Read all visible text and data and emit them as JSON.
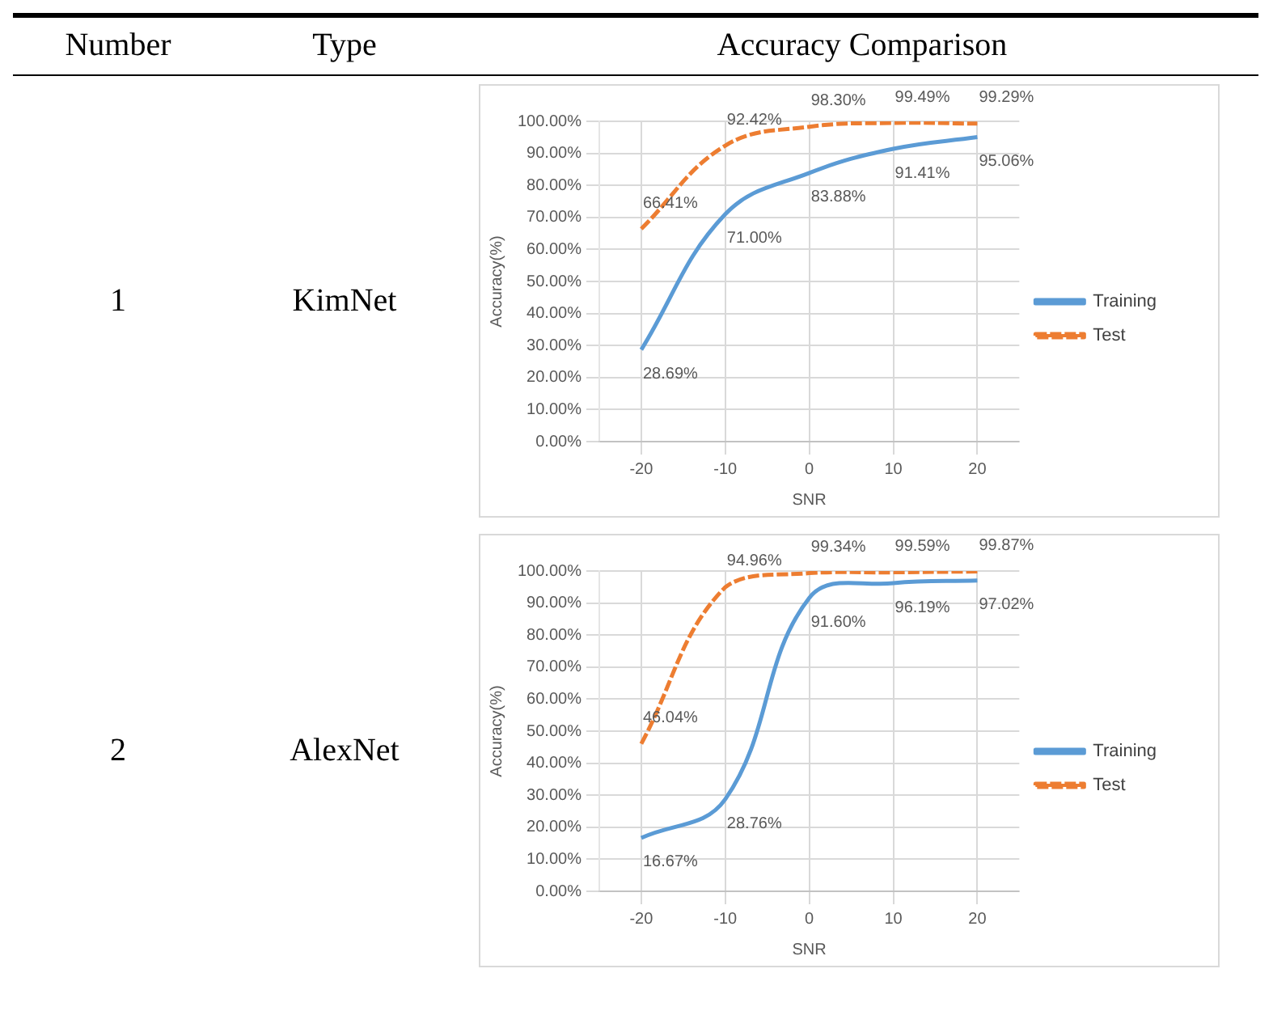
{
  "chart_data": [
    {
      "type": "other",
      "annotations": [
        "Number",
        "Type",
        "Accuracy Comparison"
      ]
    },
    {
      "type": "line",
      "annotations": [
        "1",
        "KimNet"
      ],
      "xlabel": "SNR",
      "ylabel": "Accuracy(%)",
      "x": [
        -20,
        -10,
        0,
        10,
        20
      ],
      "xlim": [
        -25,
        25
      ],
      "xticks": [
        -20,
        -10,
        0,
        10,
        20
      ],
      "ylim": [
        0,
        100
      ],
      "yticks": [
        {
          "value": 0,
          "label": "0.00%"
        },
        {
          "value": 10,
          "label": "10.00%"
        },
        {
          "value": 20,
          "label": "20.00%"
        },
        {
          "value": 30,
          "label": "30.00%"
        },
        {
          "value": 40,
          "label": "40.00%"
        },
        {
          "value": 50,
          "label": "50.00%"
        },
        {
          "value": 60,
          "label": "60.00%"
        },
        {
          "value": 70,
          "label": "70.00%"
        },
        {
          "value": 80,
          "label": "80.00%"
        },
        {
          "value": 90,
          "label": "90.00%"
        },
        {
          "value": 100,
          "label": "100.00%"
        }
      ],
      "grid": true,
      "legend": "right",
      "marker": "none",
      "series": [
        {
          "name": "Training",
          "color": "#5b9bd5",
          "line_style": "solid",
          "values": [
            28.69,
            71.0,
            83.88,
            91.41,
            95.06
          ],
          "value_labels": [
            "28.69%",
            "71.00%",
            "83.88%",
            "91.41%",
            "95.06%"
          ]
        },
        {
          "name": "Test",
          "color": "#ed7d31",
          "line_style": "dashed",
          "values": [
            66.41,
            92.42,
            98.3,
            99.49,
            99.29
          ],
          "value_labels": [
            "66.41%",
            "92.42%",
            "98.30%",
            "99.49%",
            "99.29%"
          ]
        }
      ]
    },
    {
      "type": "line",
      "annotations": [
        "2",
        "AlexNet"
      ],
      "xlabel": "SNR",
      "ylabel": "Accuracy(%)",
      "x": [
        -20,
        -10,
        0,
        10,
        20
      ],
      "xlim": [
        -25,
        25
      ],
      "xticks": [
        -20,
        -10,
        0,
        10,
        20
      ],
      "ylim": [
        0,
        100
      ],
      "yticks": [
        {
          "value": 0,
          "label": "0.00%"
        },
        {
          "value": 10,
          "label": "10.00%"
        },
        {
          "value": 20,
          "label": "20.00%"
        },
        {
          "value": 30,
          "label": "30.00%"
        },
        {
          "value": 40,
          "label": "40.00%"
        },
        {
          "value": 50,
          "label": "50.00%"
        },
        {
          "value": 60,
          "label": "60.00%"
        },
        {
          "value": 70,
          "label": "70.00%"
        },
        {
          "value": 80,
          "label": "80.00%"
        },
        {
          "value": 90,
          "label": "90.00%"
        },
        {
          "value": 100,
          "label": "100.00%"
        }
      ],
      "grid": true,
      "legend": "right",
      "marker": "none",
      "series": [
        {
          "name": "Training",
          "color": "#5b9bd5",
          "line_style": "solid",
          "values": [
            16.67,
            28.76,
            91.6,
            96.19,
            97.02
          ],
          "value_labels": [
            "16.67%",
            "28.76%",
            "91.60%",
            "96.19%",
            "97.02%"
          ]
        },
        {
          "name": "Test",
          "color": "#ed7d31",
          "line_style": "dashed",
          "values": [
            46.04,
            94.96,
            99.34,
            99.59,
            99.87
          ],
          "value_labels": [
            "46.04%",
            "94.96%",
            "99.34%",
            "99.59%",
            "99.87%"
          ]
        }
      ]
    }
  ]
}
